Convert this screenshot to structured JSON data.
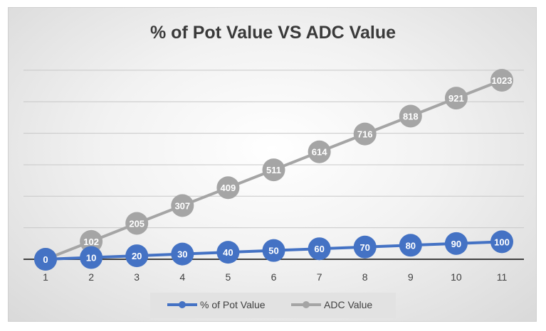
{
  "chart_data": {
    "type": "line",
    "title": "% of Pot Value VS ADC Value",
    "xlabel": "",
    "ylabel": "",
    "categories": [
      "1",
      "2",
      "3",
      "4",
      "5",
      "6",
      "7",
      "8",
      "9",
      "10",
      "11"
    ],
    "ylim": [
      0,
      1100
    ],
    "grid": true,
    "legend_position": "bottom",
    "series": [
      {
        "name": "% of Pot Value",
        "color": "#4472c4",
        "values": [
          0,
          10,
          20,
          30,
          40,
          50,
          60,
          70,
          80,
          90,
          100
        ]
      },
      {
        "name": "ADC Value",
        "color": "#a5a5a5",
        "values": [
          0,
          102,
          205,
          307,
          409,
          511,
          614,
          716,
          818,
          921,
          1023
        ]
      }
    ]
  }
}
